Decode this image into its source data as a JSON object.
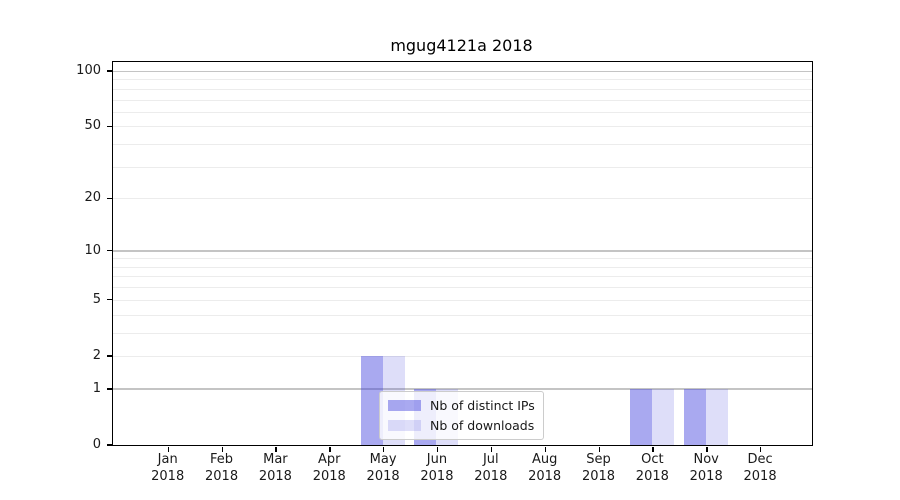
{
  "chart_data": {
    "type": "bar",
    "title": "mgug4121a 2018",
    "categories": [
      "Jan",
      "Feb",
      "Mar",
      "Apr",
      "May",
      "Jun",
      "Jul",
      "Aug",
      "Sep",
      "Oct",
      "Nov",
      "Dec"
    ],
    "category_year": "2018",
    "series": [
      {
        "name": "Nb of distinct IPs",
        "color": "rgba(60,60,220,0.44)",
        "values": [
          0,
          0,
          0,
          0,
          2,
          1,
          0,
          0,
          0,
          1,
          1,
          0
        ]
      },
      {
        "name": "Nb of downloads",
        "color": "rgba(60,60,220,0.17)",
        "values": [
          0,
          0,
          0,
          0,
          2,
          1,
          0,
          0,
          0,
          1,
          1,
          0
        ]
      }
    ],
    "yscale": "log10(1+x)",
    "ylim": [
      0,
      112
    ],
    "yticks": [
      0,
      1,
      2,
      5,
      10,
      20,
      50,
      100
    ],
    "grid_values_major": [
      1,
      10,
      100
    ],
    "grid_values_minor": [
      2,
      3,
      4,
      5,
      6,
      7,
      8,
      9,
      20,
      30,
      40,
      50,
      60,
      70,
      80,
      90
    ],
    "grid": true,
    "legend_position": "inside-bottom-center-left"
  },
  "colors": {
    "grid_major": "#c4c4c4",
    "grid_minor": "#ececec",
    "spine": "#000000",
    "text": "#1a1a1a"
  }
}
